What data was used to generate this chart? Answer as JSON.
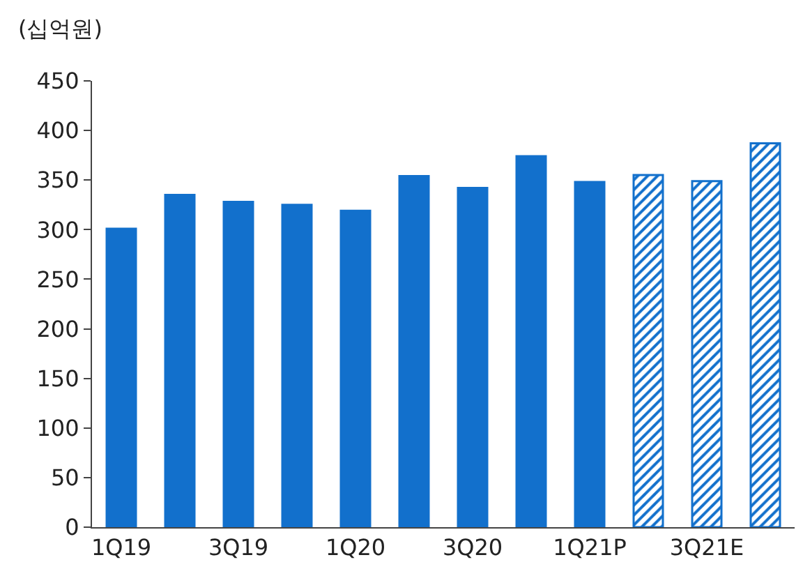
{
  "chart_data": {
    "type": "bar",
    "ylabel": "(십억원)",
    "categories": [
      "1Q19",
      null,
      "3Q19",
      null,
      "1Q20",
      null,
      "3Q20",
      null,
      "1Q21P",
      null,
      "3Q21E",
      null
    ],
    "series": [
      {
        "color": "#1270cc",
        "values": [
          301,
          335,
          328,
          325,
          319,
          354,
          342,
          374,
          348,
          null,
          null,
          null
        ]
      },
      {
        "color": "#1270cc",
        "values": [
          null,
          null,
          null,
          null,
          null,
          null,
          null,
          null,
          null,
          355,
          349,
          387
        ]
      }
    ],
    "ylim": [
      0,
      450
    ],
    "yticks": [
      0,
      50,
      100,
      150,
      200,
      250,
      300,
      350,
      400,
      450
    ],
    "grid": false
  }
}
